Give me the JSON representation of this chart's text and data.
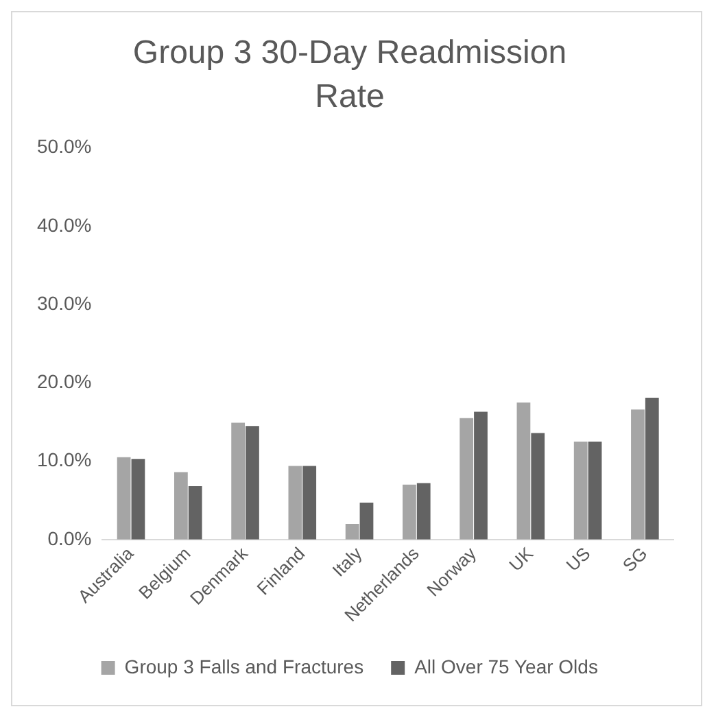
{
  "chart_data": {
    "type": "bar",
    "title": "Group 3 30-Day Readmission Rate",
    "categories": [
      "Australia",
      "Belgium",
      "Denmark",
      "Finland",
      "Italy",
      "Netherlands",
      "Norway",
      "UK",
      "US",
      "SG"
    ],
    "series": [
      {
        "name": "Group 3 Falls and Fractures",
        "color": "#a5a5a5",
        "values": [
          10.5,
          8.6,
          14.9,
          9.4,
          2.0,
          7.0,
          15.5,
          17.5,
          12.5,
          16.6
        ]
      },
      {
        "name": "All Over 75 Year Olds",
        "color": "#636363",
        "values": [
          10.3,
          6.8,
          14.5,
          9.4,
          4.7,
          7.2,
          16.3,
          13.6,
          12.5,
          18.1
        ]
      }
    ],
    "ylim": [
      0,
      50
    ],
    "yticks": [
      {
        "value": 0,
        "label": "0.0%"
      },
      {
        "value": 10,
        "label": "10.0%"
      },
      {
        "value": 20,
        "label": "20.0%"
      },
      {
        "value": 30,
        "label": "30.0%"
      },
      {
        "value": 40,
        "label": "40.0%"
      },
      {
        "value": 50,
        "label": "50.0%"
      }
    ],
    "grid": false,
    "legend": "bottom"
  }
}
